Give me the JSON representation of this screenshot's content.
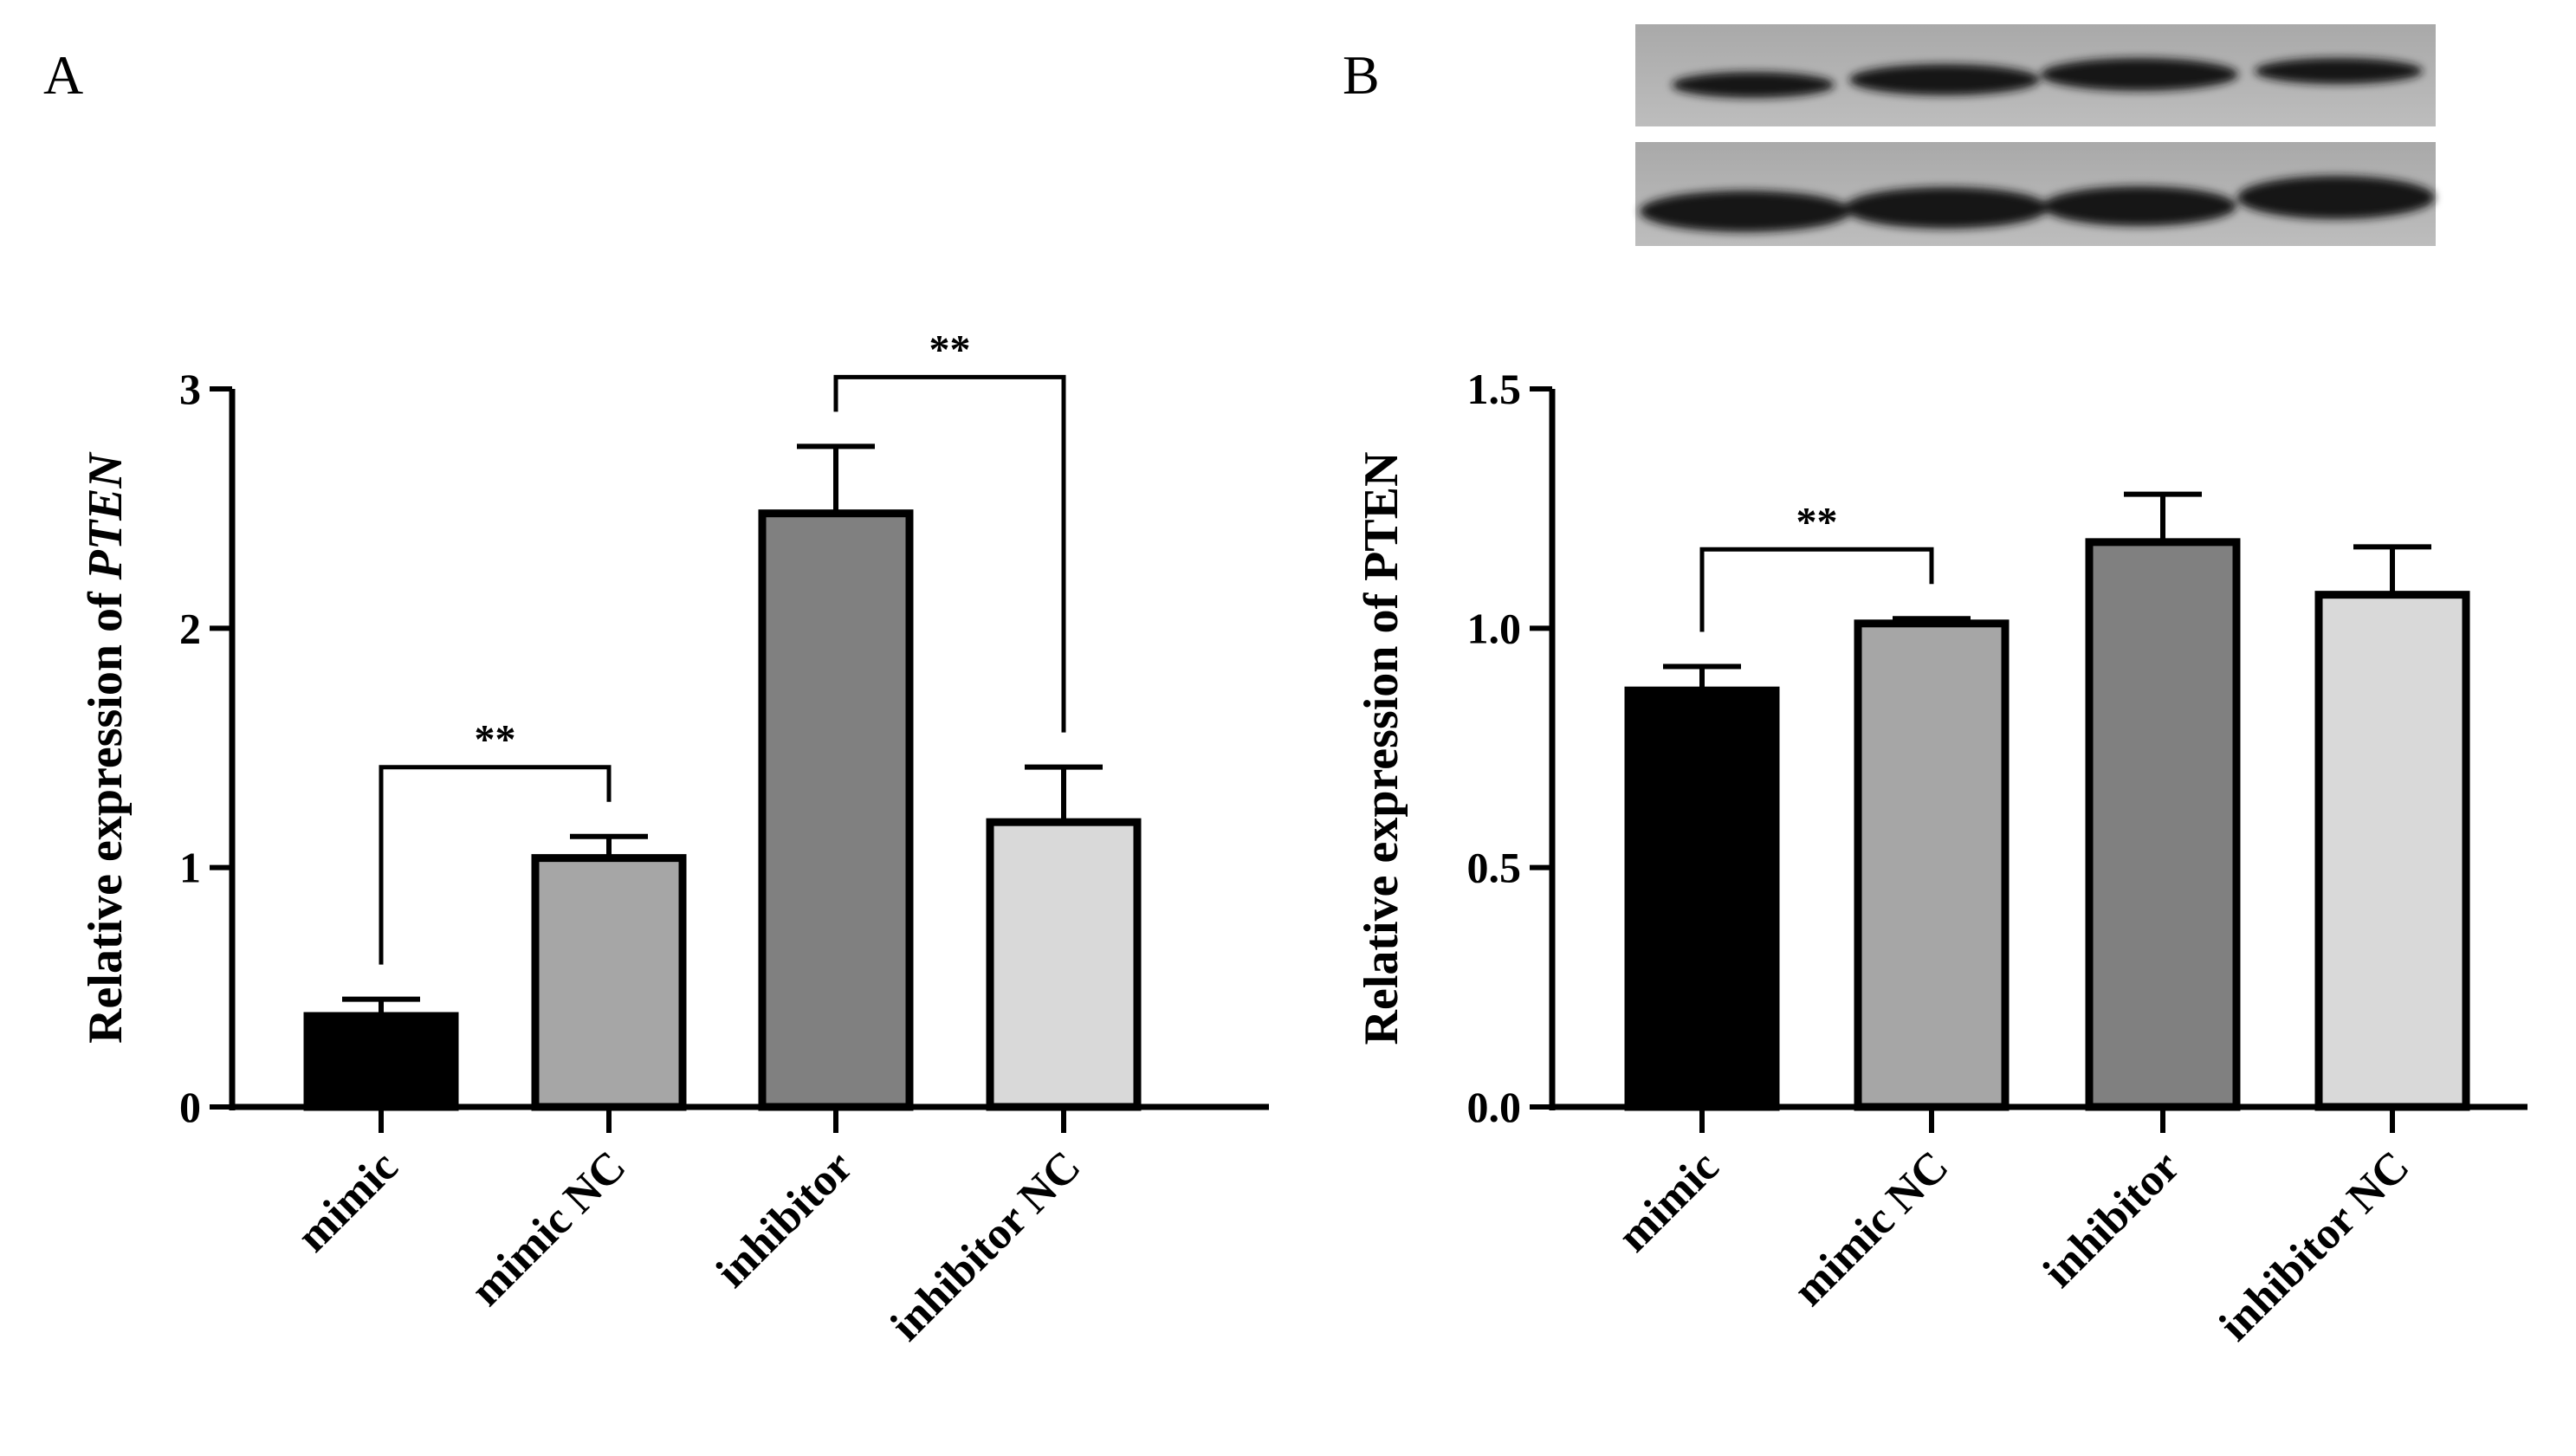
{
  "panels": [
    {
      "letter": "A"
    },
    {
      "letter": "B"
    }
  ],
  "chart_data": [
    {
      "type": "bar",
      "panel": "A",
      "categories": [
        "mimic",
        "mimic NC",
        "inhibitor",
        "inhibitor NC"
      ],
      "values": [
        0.38,
        1.04,
        2.48,
        1.19
      ],
      "errors": [
        0.07,
        0.09,
        0.28,
        0.23
      ],
      "colors": [
        "#000000",
        "#a6a6a6",
        "#808080",
        "#d9d9d9"
      ],
      "ylabel_prefix": "Relative expression of ",
      "ylabel_italic": "PTEN",
      "ylim": [
        0,
        3
      ],
      "yticks": [
        "0",
        "1",
        "2",
        "3"
      ],
      "ytick_values": [
        0,
        1,
        2,
        3
      ],
      "significance": [
        {
          "from": 0,
          "to": 1,
          "label": "**"
        },
        {
          "from": 2,
          "to": 3,
          "label": "**"
        }
      ],
      "grid": false
    },
    {
      "type": "bar",
      "panel": "B",
      "categories": [
        "mimic",
        "mimic NC",
        "inhibitor",
        "inhibitor NC"
      ],
      "values": [
        0.87,
        1.01,
        1.18,
        1.07
      ],
      "errors": [
        0.05,
        0.01,
        0.1,
        0.1
      ],
      "colors": [
        "#000000",
        "#a6a6a6",
        "#808080",
        "#d9d9d9"
      ],
      "ylabel_prefix": "Relative expression of PTEN",
      "ylabel_italic": "",
      "ylim": [
        0,
        1.5
      ],
      "yticks": [
        "0.0",
        "0.5",
        "1.0",
        "1.5"
      ],
      "ytick_values": [
        0,
        0.5,
        1.0,
        1.5
      ],
      "significance": [
        {
          "from": 0,
          "to": 1,
          "label": "**"
        }
      ],
      "grid": false
    }
  ]
}
